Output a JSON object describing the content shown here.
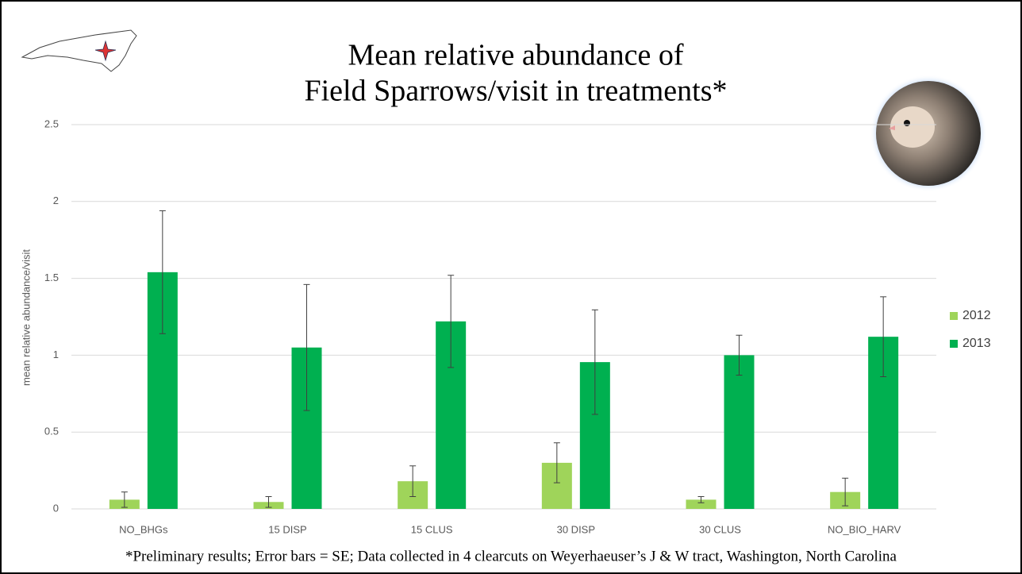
{
  "chart_data": {
    "type": "bar",
    "title": "Mean relative abundance of",
    "subtitle": "Field Sparrows/visit in treatments*",
    "y_label": "mean relative abundance/visit",
    "footnote": "*Preliminary results; Error bars = SE; Data collected in 4 clearcuts on Weyerhaeuser’s J & W tract, Washington, North Carolina",
    "categories": [
      "NO_BHGs",
      "15 DISP",
      "15 CLUS",
      "30 DISP",
      "30 CLUS",
      "NO_BIO_HARV"
    ],
    "series": [
      {
        "name": "2012",
        "color": "#9fd45a",
        "values": [
          0.06,
          0.045,
          0.18,
          0.3,
          0.06,
          0.11
        ],
        "errors": [
          0.05,
          0.035,
          0.1,
          0.13,
          0.02,
          0.09
        ]
      },
      {
        "name": "2013",
        "color": "#00b050",
        "values": [
          1.54,
          1.05,
          1.22,
          0.955,
          1.0,
          1.12
        ],
        "errors": [
          0.4,
          0.41,
          0.3,
          0.34,
          0.13,
          0.26
        ]
      }
    ],
    "ylim": [
      0,
      2.5
    ],
    "yticks": [
      0,
      0.5,
      1,
      1.5,
      2,
      2.5
    ],
    "grid": true,
    "legend": "right"
  }
}
